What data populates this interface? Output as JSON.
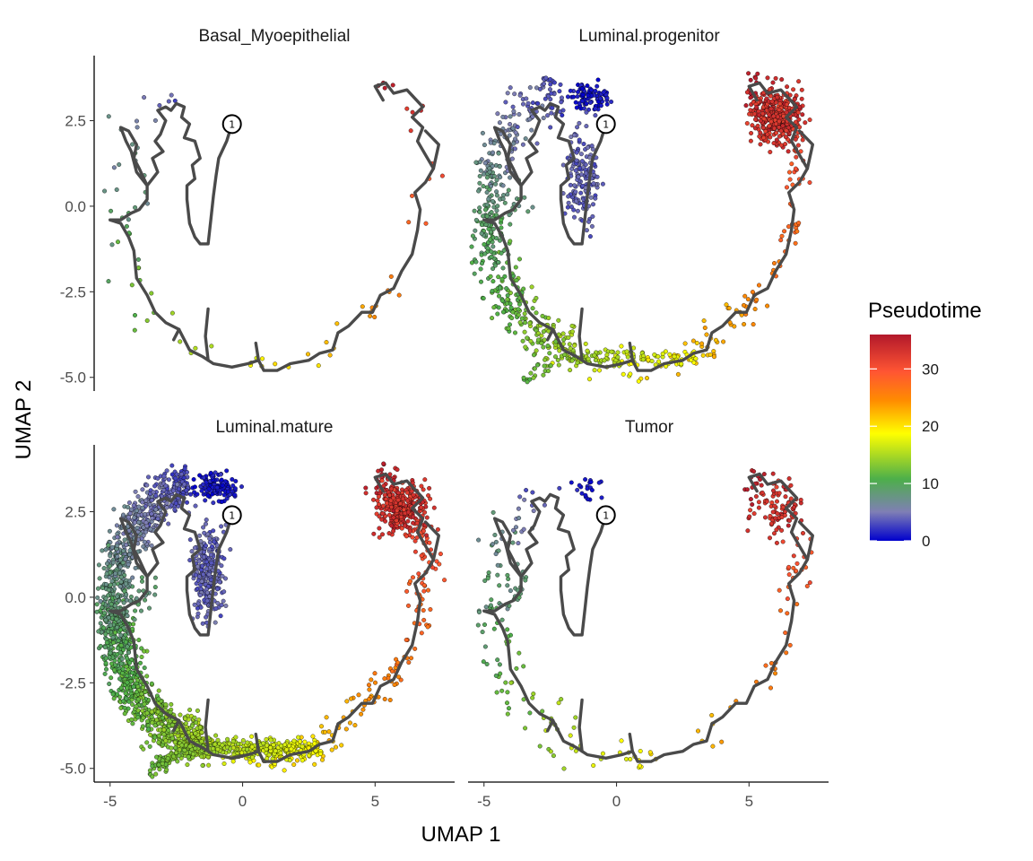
{
  "chart_data": {
    "type": "scatter",
    "subtype": "faceted trajectory scatter (UMAP embedding colored by pseudotime)",
    "xlabel": "UMAP 1",
    "ylabel": "UMAP 2",
    "xlim": [
      -5.6,
      8.0
    ],
    "ylim": [
      -5.4,
      4.4
    ],
    "x_ticks": [
      -5,
      0,
      5
    ],
    "x_tick_labels": [
      "-5",
      "0",
      "5"
    ],
    "y_ticks": [
      2.5,
      0.0,
      -2.5,
      -5.0
    ],
    "y_tick_labels": [
      "2.5",
      "0.0",
      "-2.5",
      "-5.0"
    ],
    "grid": false,
    "legend": {
      "title": "Pseudotime",
      "placement": "right",
      "type": "colorbar",
      "range": [
        0,
        36
      ],
      "ticks": [
        0,
        10,
        20,
        30
      ],
      "tick_labels": [
        "0",
        "10",
        "20",
        "30"
      ],
      "colors": [
        "#0000cc",
        "#7f7fb5",
        "#4daf4a",
        "#ffff00",
        "#ff8c00",
        "#ff5533",
        "#b2182b"
      ]
    },
    "root_node_label": "1",
    "root_node": [
      -0.4,
      2.4
    ],
    "facets": [
      {
        "title": "Basal_Myoepithelial",
        "density": "sparse"
      },
      {
        "title": "Luminal.progenitor",
        "density": "medium"
      },
      {
        "title": "Luminal.mature",
        "density": "dense"
      },
      {
        "title": "Tumor",
        "density": "sparse"
      }
    ],
    "trajectory_path": [
      [
        -0.4,
        2.4
      ],
      [
        -0.6,
        1.9
      ],
      [
        -0.9,
        1.4
      ],
      [
        -1.0,
        0.9
      ],
      [
        -1.1,
        0.3
      ],
      [
        -1.2,
        -0.4
      ],
      [
        -1.3,
        -1.1
      ],
      [
        -1.6,
        -1.1
      ],
      [
        -1.8,
        -0.9
      ],
      [
        -2.0,
        -0.5
      ],
      [
        -2.1,
        0.2
      ],
      [
        -2.1,
        0.6
      ],
      [
        -1.8,
        0.8
      ],
      [
        -1.9,
        1.2
      ],
      [
        -1.6,
        1.4
      ],
      [
        -1.8,
        1.9
      ],
      [
        -2.2,
        2.0
      ],
      [
        -2.0,
        2.4
      ],
      [
        -2.3,
        2.6
      ],
      [
        -2.2,
        2.9
      ],
      [
        -2.5,
        3.0
      ],
      [
        -2.7,
        2.8
      ],
      [
        -2.9,
        2.9
      ],
      [
        -3.2,
        2.8
      ],
      [
        -2.9,
        2.5
      ],
      [
        -3.1,
        2.1
      ],
      [
        -3.3,
        1.9
      ],
      [
        -3.0,
        1.6
      ],
      [
        -3.4,
        1.4
      ],
      [
        -3.2,
        1.0
      ],
      [
        -3.6,
        0.6
      ],
      [
        -3.9,
        1.1
      ],
      [
        -4.1,
        1.4
      ],
      [
        -4.0,
        1.8
      ],
      [
        -4.3,
        2.2
      ],
      [
        -4.6,
        2.3
      ],
      [
        -4.4,
        1.9
      ],
      [
        -4.2,
        1.6
      ],
      [
        -4.0,
        1.0
      ],
      [
        -3.6,
        0.6
      ],
      [
        -3.6,
        0.2
      ],
      [
        -3.9,
        -0.1
      ],
      [
        -4.2,
        -0.2
      ],
      [
        -4.6,
        -0.4
      ],
      [
        -5.0,
        -0.4
      ],
      [
        -4.6,
        -0.5
      ],
      [
        -4.3,
        -0.9
      ],
      [
        -4.1,
        -1.3
      ],
      [
        -4.0,
        -2.1
      ],
      [
        -3.6,
        -2.6
      ],
      [
        -3.3,
        -3.1
      ],
      [
        -2.9,
        -3.4
      ],
      [
        -2.4,
        -3.6
      ],
      [
        -2.0,
        -4.2
      ],
      [
        -1.5,
        -4.4
      ],
      [
        -1.1,
        -4.6
      ],
      [
        -0.4,
        -4.7
      ],
      [
        0.2,
        -4.6
      ],
      [
        0.6,
        -4.5
      ],
      [
        0.8,
        -4.8
      ],
      [
        1.3,
        -4.8
      ],
      [
        1.8,
        -4.6
      ],
      [
        2.5,
        -4.5
      ],
      [
        2.9,
        -4.3
      ],
      [
        3.4,
        -4.2
      ],
      [
        3.6,
        -3.7
      ],
      [
        4.0,
        -3.5
      ],
      [
        4.5,
        -3.1
      ],
      [
        4.9,
        -3.1
      ],
      [
        5.2,
        -2.6
      ],
      [
        5.7,
        -2.4
      ],
      [
        6.0,
        -1.9
      ],
      [
        6.4,
        -1.4
      ],
      [
        6.6,
        -0.7
      ],
      [
        6.7,
        -0.1
      ],
      [
        6.5,
        0.4
      ],
      [
        6.9,
        0.7
      ],
      [
        7.2,
        1.1
      ],
      [
        6.9,
        1.5
      ],
      [
        6.6,
        1.9
      ],
      [
        6.8,
        2.3
      ],
      [
        6.4,
        2.6
      ],
      [
        6.8,
        2.9
      ],
      [
        6.2,
        3.4
      ],
      [
        5.7,
        3.3
      ],
      [
        5.4,
        3.6
      ],
      [
        5.0,
        3.5
      ],
      [
        5.3,
        3.1
      ]
    ],
    "trajectory_branches": [
      [
        [
          -1.3,
          -3.0
        ],
        [
          -1.4,
          -3.8
        ],
        [
          -1.3,
          -4.5
        ]
      ],
      [
        [
          0.5,
          -4.0
        ],
        [
          0.6,
          -4.5
        ]
      ],
      [
        [
          -2.4,
          -3.6
        ],
        [
          -2.6,
          -3.9
        ]
      ],
      [
        [
          7.2,
          1.1
        ],
        [
          7.4,
          1.8
        ],
        [
          6.9,
          2.2
        ]
      ]
    ]
  }
}
